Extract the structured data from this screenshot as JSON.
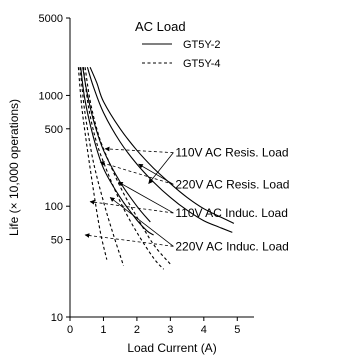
{
  "chart_data": {
    "type": "line",
    "xlabel": "Load Current (A)",
    "ylabel": "Life (× 10,000 operations)",
    "xscale": "linear",
    "yscale": "log",
    "xlim": [
      0,
      5.5
    ],
    "ylim": [
      10,
      5000
    ],
    "xticks": [
      0,
      1,
      2,
      3,
      4,
      5
    ],
    "xtick_labels": [
      "0",
      "1",
      "2",
      "3",
      "4",
      "5"
    ],
    "yticks": [
      10,
      50,
      100,
      500,
      1000,
      5000
    ],
    "ytick_labels": [
      "10",
      "50",
      "100",
      "500",
      "1000",
      "5000"
    ],
    "grid": false,
    "legend": {
      "title": "AC Load",
      "position": "top-right",
      "entries": [
        {
          "label": "GT5Y-2",
          "style": "solid"
        },
        {
          "label": "GT5Y-4",
          "style": "dashed"
        }
      ]
    },
    "annotations": [
      {
        "text": "110V AC Resis. Load",
        "x": 3.15,
        "y": 280
      },
      {
        "text": "220V AC Resis. Load",
        "x": 3.15,
        "y": 145
      },
      {
        "text": "110V AC Induc. Load",
        "x": 3.15,
        "y": 80
      },
      {
        "text": "220V AC Induc. Load",
        "x": 3.15,
        "y": 40
      }
    ],
    "series": [
      {
        "curve_label": "110V AC Resis. Load",
        "style": "solid",
        "x": [
          0.6,
          0.8,
          1.0,
          1.5,
          2.0,
          2.5,
          3.0,
          3.5,
          4.0,
          4.5,
          4.9
        ],
        "y": [
          1800,
          1300,
          880,
          500,
          320,
          220,
          160,
          120,
          95,
          80,
          70
        ]
      },
      {
        "curve_label": "220V AC Resis. Load",
        "style": "solid",
        "x": [
          0.52,
          0.7,
          1.0,
          1.5,
          2.0,
          2.5,
          3.0,
          3.5,
          4.0,
          4.5,
          4.85
        ],
        "y": [
          1800,
          1200,
          700,
          380,
          240,
          165,
          120,
          92,
          74,
          64,
          58
        ]
      },
      {
        "curve_label": "110V AC Induc. Load",
        "style": "solid",
        "x": [
          0.38,
          0.5,
          0.7,
          1.0,
          1.5,
          2.0,
          2.4
        ],
        "y": [
          1800,
          1100,
          600,
          320,
          165,
          100,
          72
        ]
      },
      {
        "curve_label": "220V AC Induc. Load",
        "style": "solid",
        "x": [
          0.32,
          0.45,
          0.7,
          1.0,
          1.5,
          2.0,
          2.3,
          2.5
        ],
        "y": [
          1800,
          900,
          420,
          220,
          120,
          75,
          60,
          55
        ]
      },
      {
        "curve_label": "110V AC Resis. Load",
        "style": "dashed",
        "x": [
          0.45,
          0.6,
          0.8,
          1.0,
          1.5,
          2.0,
          2.5,
          3.0
        ],
        "y": [
          1800,
          900,
          500,
          330,
          150,
          80,
          45,
          30
        ]
      },
      {
        "curve_label": "220V AC Resis. Load",
        "style": "dashed",
        "x": [
          0.4,
          0.55,
          0.75,
          1.0,
          1.5,
          2.0,
          2.5,
          2.8
        ],
        "y": [
          1800,
          800,
          420,
          250,
          110,
          58,
          34,
          27
        ]
      },
      {
        "curve_label": "110V AC Induc. Load",
        "style": "dashed",
        "x": [
          0.3,
          0.4,
          0.5,
          0.7,
          1.0,
          1.3,
          1.6
        ],
        "y": [
          1800,
          900,
          550,
          250,
          110,
          55,
          29
        ]
      },
      {
        "curve_label": "220V AC Induc. Load",
        "style": "dashed",
        "x": [
          0.25,
          0.35,
          0.5,
          0.7,
          0.9,
          1.1
        ],
        "y": [
          1800,
          800,
          360,
          140,
          60,
          33
        ]
      }
    ]
  }
}
